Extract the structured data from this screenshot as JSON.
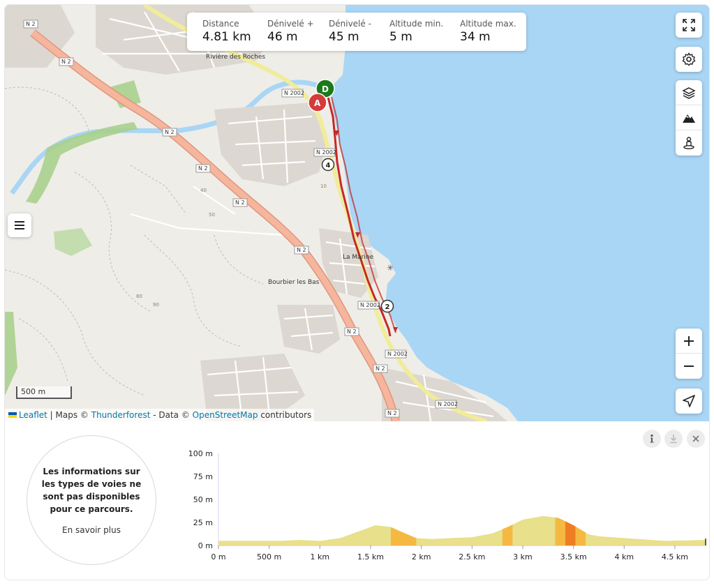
{
  "stats": [
    {
      "label": "Distance",
      "value": "4.81 km"
    },
    {
      "label": "Dénivelé +",
      "value": "46 m"
    },
    {
      "label": "Dénivelé -",
      "value": "45 m"
    },
    {
      "label": "Altitude min.",
      "value": "5 m"
    },
    {
      "label": "Altitude max.",
      "value": "34 m"
    }
  ],
  "map": {
    "place_labels": [
      "Rivière des Roches",
      "La Marine",
      "Bourbier les Bas"
    ],
    "road_labels": [
      "N 2",
      "N 2002"
    ],
    "contour_labels": [
      "40",
      "50",
      "80",
      "90",
      "10"
    ],
    "route_markers": {
      "start": "D",
      "end": "A",
      "km2": "2",
      "km4": "4"
    },
    "route_color": "#c62828",
    "sea_color": "#a9d6f5",
    "scale": "500 m",
    "attribution": {
      "leaflet": "Leaflet",
      "sep1": " | Maps © ",
      "thunderforest": "Thunderforest",
      "sep2": " - Data © ",
      "osm": "OpenStreetMap",
      "sep3": " contributors"
    }
  },
  "controls": [
    "expand-icon",
    "gear-icon",
    "layers-icon",
    "terrain-icon",
    "street-view-icon",
    "zoom-in-icon",
    "zoom-out-icon",
    "locate-icon",
    "menu-icon"
  ],
  "panel": {
    "info_text": "Les informations sur les types de voies ne sont pas disponibles pour ce parcours.",
    "info_link": "En savoir plus",
    "buttons": [
      "info-icon",
      "download-icon",
      "close-icon"
    ]
  },
  "chart_data": {
    "type": "area",
    "ylim": [
      0,
      100
    ],
    "xlim": [
      0,
      4.81
    ],
    "ytick_labels": [
      "100 m",
      "75 m",
      "50 m",
      "25 m",
      "0 m"
    ],
    "xtick_labels": [
      "0 m",
      "500 m",
      "1 km",
      "1.5 km",
      "2 km",
      "2.5 km",
      "3 km",
      "3.5 km",
      "4 km",
      "4.5 km"
    ],
    "series": [
      {
        "x": [
          0,
          0.3,
          0.6,
          0.8,
          1.0,
          1.2,
          1.4,
          1.55,
          1.7,
          1.8,
          1.95,
          2.1,
          2.3,
          2.5,
          2.7,
          2.85,
          3.0,
          3.2,
          3.35,
          3.5,
          3.65,
          3.75,
          4.0,
          4.4,
          4.81
        ],
        "y": [
          5,
          5,
          5,
          6,
          5,
          8,
          16,
          22,
          20,
          15,
          8,
          7,
          8,
          9,
          13,
          20,
          28,
          32,
          30,
          22,
          12,
          10,
          8,
          5,
          6
        ]
      }
    ],
    "slope_segments": [
      {
        "from": 1.7,
        "to": 1.95,
        "color": "#f5b942"
      },
      {
        "from": 2.8,
        "to": 2.9,
        "color": "#f5b942"
      },
      {
        "from": 3.32,
        "to": 3.42,
        "color": "#f5b942"
      },
      {
        "from": 3.42,
        "to": 3.52,
        "color": "#ef7d24"
      },
      {
        "from": 3.52,
        "to": 3.62,
        "color": "#f5b942"
      }
    ],
    "base_color": "#e8e08a"
  }
}
